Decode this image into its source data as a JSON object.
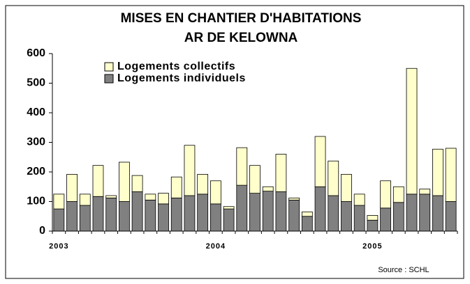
{
  "chart_data": {
    "type": "bar",
    "stacked": true,
    "title": [
      "MISES EN CHANTIER D'HABITATIONS",
      "AR DE KELOWNA"
    ],
    "categories": [
      "2003",
      null,
      null,
      null,
      null,
      null,
      null,
      null,
      null,
      null,
      null,
      null,
      "2004",
      null,
      null,
      null,
      null,
      null,
      null,
      null,
      null,
      null,
      null,
      null,
      "2005",
      null,
      null,
      null,
      null,
      null,
      null
    ],
    "series": [
      {
        "name": "Logements collectifs",
        "color": "#ffffcc",
        "values": [
          50,
          92,
          38,
          105,
          8,
          133,
          55,
          20,
          36,
          71,
          170,
          67,
          78,
          8,
          127,
          94,
          15,
          127,
          7,
          15,
          170,
          117,
          92,
          38,
          16,
          92,
          53,
          425,
          17,
          157,
          180
        ]
      },
      {
        "name": "Logements individuels",
        "color": "#808080",
        "values": [
          75,
          100,
          87,
          117,
          112,
          100,
          133,
          105,
          92,
          112,
          120,
          125,
          92,
          75,
          155,
          128,
          135,
          133,
          105,
          50,
          150,
          120,
          100,
          87,
          37,
          78,
          97,
          125,
          125,
          120,
          100
        ]
      }
    ],
    "ylim": [
      0,
      600
    ],
    "yticks": [
      0,
      100,
      200,
      300,
      400,
      500,
      600
    ],
    "grid": false,
    "legend": "top-left",
    "source": "Source : SCHL"
  }
}
